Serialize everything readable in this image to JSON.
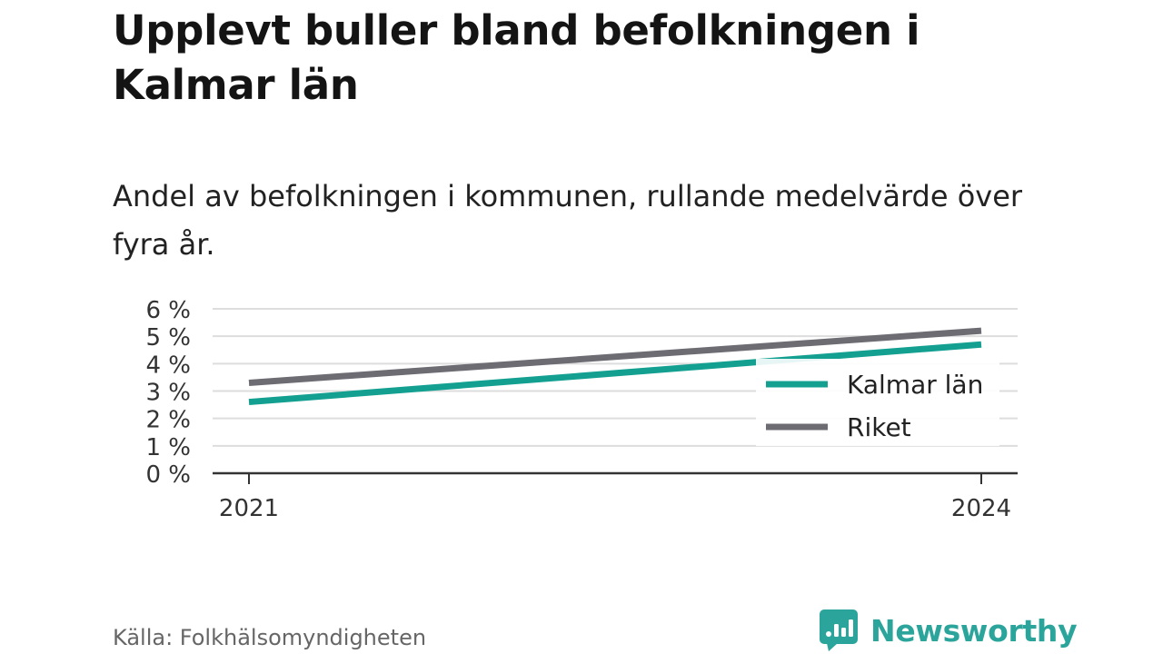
{
  "title": "Upplevt buller bland befolkningen i Kalmar län",
  "subtitle": "Andel av befolkningen i kommunen, rullande medelvärde över fyra år.",
  "source": "Källa: Folkhälsomyndigheten",
  "brand": {
    "name": "Newsworthy",
    "icon": "newsworthy-logo-icon",
    "color": "#2ba59b"
  },
  "chart_data": {
    "type": "line",
    "x": [
      "2021",
      "2024"
    ],
    "ylim": [
      0,
      6
    ],
    "yticks": [
      0,
      1,
      2,
      3,
      4,
      5,
      6
    ],
    "ytick_labels": [
      "0 %",
      "1 %",
      "2 %",
      "3 %",
      "4 %",
      "5 %",
      "6 %"
    ],
    "grid": true,
    "legend_position": "lower-right",
    "series": [
      {
        "name": "Kalmar län",
        "color": "#13a091",
        "values": [
          2.6,
          4.7
        ]
      },
      {
        "name": "Riket",
        "color": "#6e6c73",
        "values": [
          3.3,
          5.2
        ]
      }
    ]
  }
}
